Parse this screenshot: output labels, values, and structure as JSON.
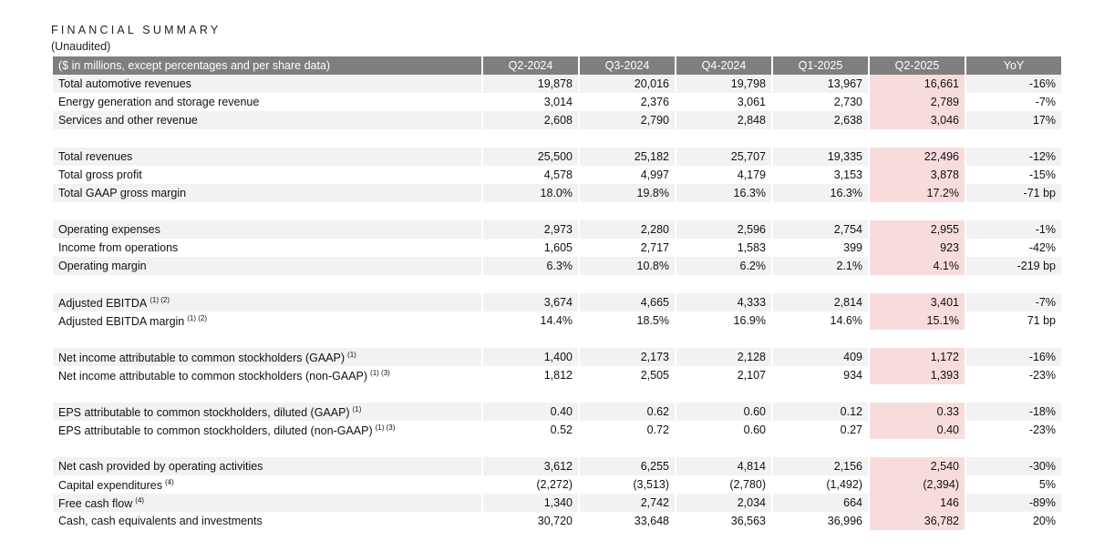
{
  "title": "FINANCIAL SUMMARY",
  "subtitle": "(Unaudited)",
  "header": {
    "label": "($ in millions, except percentages and per share data)",
    "columns": [
      "Q2-2024",
      "Q3-2024",
      "Q4-2024",
      "Q1-2025",
      "Q2-2025",
      "YoY"
    ]
  },
  "highlight_color": "#f8dcdc",
  "header_color": "#7f7f7f",
  "groups": [
    {
      "rows": [
        {
          "label": "Total automotive revenues",
          "note": "",
          "values": [
            "19,878",
            "20,016",
            "19,798",
            "13,967",
            "16,661",
            "-16%"
          ]
        },
        {
          "label": "Energy generation and storage revenue",
          "note": "",
          "values": [
            "3,014",
            "2,376",
            "3,061",
            "2,730",
            "2,789",
            "-7%"
          ]
        },
        {
          "label": "Services and other revenue",
          "note": "",
          "values": [
            "2,608",
            "2,790",
            "2,848",
            "2,638",
            "3,046",
            "17%"
          ]
        }
      ]
    },
    {
      "rows": [
        {
          "label": "Total revenues",
          "note": "",
          "values": [
            "25,500",
            "25,182",
            "25,707",
            "19,335",
            "22,496",
            "-12%"
          ]
        },
        {
          "label": "Total gross profit",
          "note": "",
          "values": [
            "4,578",
            "4,997",
            "4,179",
            "3,153",
            "3,878",
            "-15%"
          ]
        },
        {
          "label": "Total GAAP gross margin",
          "note": "",
          "values": [
            "18.0%",
            "19.8%",
            "16.3%",
            "16.3%",
            "17.2%",
            "-71 bp"
          ]
        }
      ]
    },
    {
      "rows": [
        {
          "label": "Operating expenses",
          "note": "",
          "values": [
            "2,973",
            "2,280",
            "2,596",
            "2,754",
            "2,955",
            "-1%"
          ]
        },
        {
          "label": "Income from operations",
          "note": "",
          "values": [
            "1,605",
            "2,717",
            "1,583",
            "399",
            "923",
            "-42%"
          ]
        },
        {
          "label": "Operating margin",
          "note": "",
          "values": [
            "6.3%",
            "10.8%",
            "6.2%",
            "2.1%",
            "4.1%",
            "-219 bp"
          ]
        }
      ]
    },
    {
      "rows": [
        {
          "label": "Adjusted EBITDA",
          "note": "(1) (2)",
          "values": [
            "3,674",
            "4,665",
            "4,333",
            "2,814",
            "3,401",
            "-7%"
          ]
        },
        {
          "label": "Adjusted EBITDA margin",
          "note": "(1) (2)",
          "values": [
            "14.4%",
            "18.5%",
            "16.9%",
            "14.6%",
            "15.1%",
            "71 bp"
          ]
        }
      ]
    },
    {
      "rows": [
        {
          "label": "Net income attributable to common stockholders (GAAP)",
          "note": "(1)",
          "values": [
            "1,400",
            "2,173",
            "2,128",
            "409",
            "1,172",
            "-16%"
          ]
        },
        {
          "label": "Net income attributable to common stockholders (non-GAAP)",
          "note": "(1) (3)",
          "values": [
            "1,812",
            "2,505",
            "2,107",
            "934",
            "1,393",
            "-23%"
          ]
        }
      ]
    },
    {
      "rows": [
        {
          "label": "EPS attributable to common stockholders, diluted (GAAP)",
          "note": "(1)",
          "values": [
            "0.40",
            "0.62",
            "0.60",
            "0.12",
            "0.33",
            "-18%"
          ]
        },
        {
          "label": "EPS attributable to common stockholders, diluted (non-GAAP)",
          "note": "(1) (3)",
          "values": [
            "0.52",
            "0.72",
            "0.60",
            "0.27",
            "0.40",
            "-23%"
          ]
        }
      ]
    },
    {
      "rows": [
        {
          "label": "Net cash provided by operating activities",
          "note": "",
          "values": [
            "3,612",
            "6,255",
            "4,814",
            "2,156",
            "2,540",
            "-30%"
          ]
        },
        {
          "label": "Capital expenditures",
          "note": "(4)",
          "values": [
            "(2,272)",
            "(3,513)",
            "(2,780)",
            "(1,492)",
            "(2,394)",
            "5%"
          ]
        },
        {
          "label": "Free cash flow",
          "note": "(4)",
          "values": [
            "1,340",
            "2,742",
            "2,034",
            "664",
            "146",
            "-89%"
          ]
        },
        {
          "label": "Cash, cash equivalents and investments",
          "note": "",
          "values": [
            "30,720",
            "33,648",
            "36,563",
            "36,996",
            "36,782",
            "20%"
          ]
        }
      ]
    }
  ]
}
